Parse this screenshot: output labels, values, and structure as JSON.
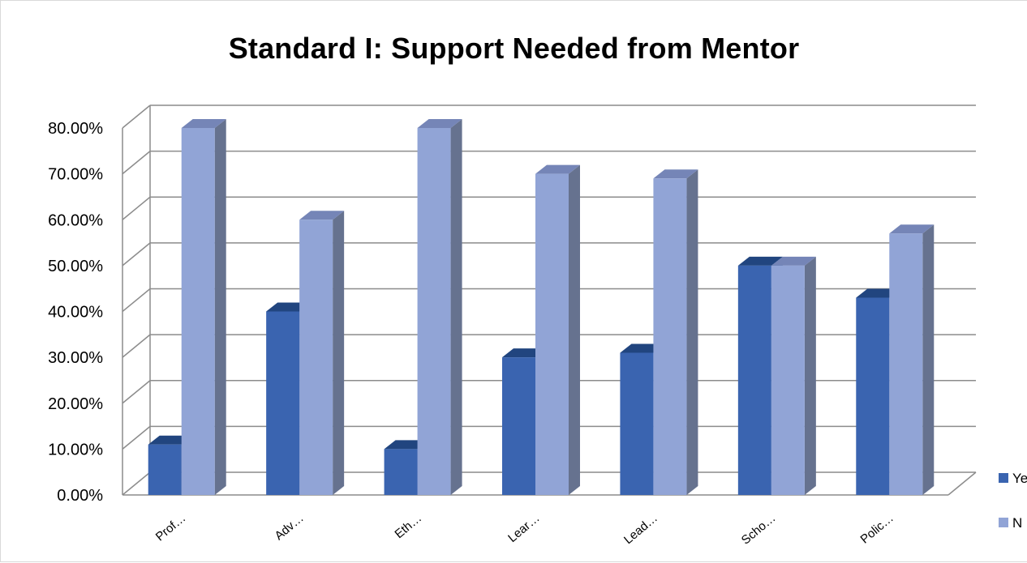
{
  "chart_data": {
    "type": "bar",
    "title": "Standard I: Support Needed from Mentor",
    "xlabel": "",
    "ylabel": "",
    "ylim": [
      0,
      0.8
    ],
    "y_ticks": [
      "0.00%",
      "10.00%",
      "20.00%",
      "30.00%",
      "40.00%",
      "50.00%",
      "60.00%",
      "70.00%",
      "80.00%"
    ],
    "categories": [
      "Prof…",
      "Adv…",
      "Eth…",
      "Lear…",
      "Lead…",
      "Scho…",
      "Polic…"
    ],
    "series": [
      {
        "name": "Ye",
        "values": [
          0.11,
          0.4,
          0.1,
          0.3,
          0.31,
          0.5,
          0.43
        ]
      },
      {
        "name": "N",
        "values": [
          0.8,
          0.6,
          0.8,
          0.7,
          0.69,
          0.5,
          0.57
        ]
      }
    ],
    "grid": true,
    "legend_position": "right",
    "three_d": true,
    "colors": {
      "series1_front": "#3a64b0",
      "series1_side": "#2a4f91",
      "series1_top": "#21457f",
      "series2_front": "#91a4d6",
      "series2_side": "#66728f",
      "series2_top": "#7585b7",
      "grid": "#8c8c8c"
    }
  }
}
